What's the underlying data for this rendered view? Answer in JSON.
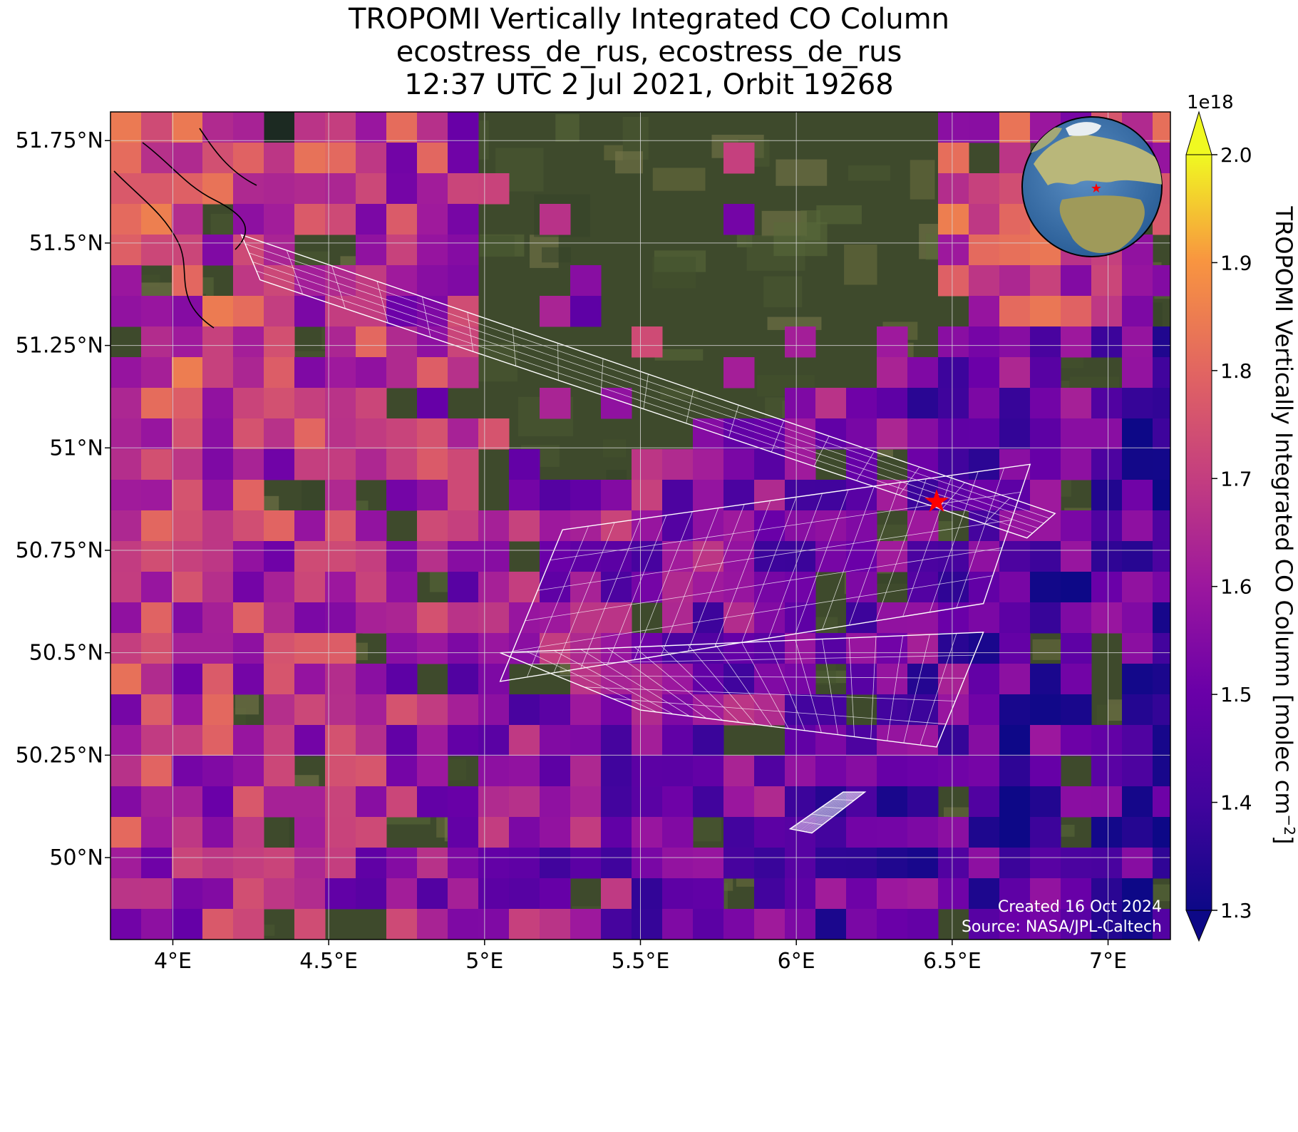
{
  "title": {
    "line1": "TROPOMI Vertically Integrated CO Column",
    "line2": "ecostress_de_rus, ecostress_de_rus",
    "line3": "12:37 UTC 2 Jul 2021, Orbit 19268"
  },
  "map": {
    "lon_range": [
      3.8,
      7.2
    ],
    "lat_range": [
      49.8,
      51.82
    ],
    "lon_ticks": [
      {
        "value": 4.0,
        "label": "4°E"
      },
      {
        "value": 4.5,
        "label": "4.5°E"
      },
      {
        "value": 5.0,
        "label": "5°E"
      },
      {
        "value": 5.5,
        "label": "5.5°E"
      },
      {
        "value": 6.0,
        "label": "6°E"
      },
      {
        "value": 6.5,
        "label": "6.5°E"
      },
      {
        "value": 7.0,
        "label": "7°E"
      }
    ],
    "lat_ticks": [
      {
        "value": 51.75,
        "label": "51.75°N"
      },
      {
        "value": 51.5,
        "label": "51.5°N"
      },
      {
        "value": 51.25,
        "label": "51.25°N"
      },
      {
        "value": 51.0,
        "label": "51°N"
      },
      {
        "value": 50.75,
        "label": "50.75°N"
      },
      {
        "value": 50.5,
        "label": "50.5°N"
      },
      {
        "value": 50.25,
        "label": "50.25°N"
      },
      {
        "value": 50.0,
        "label": "50°N"
      }
    ],
    "gridlines": true,
    "site_marker": {
      "lon": 6.45,
      "lat": 50.87,
      "color": "#ff0000"
    },
    "land_color": "#3e4a2c",
    "water_color": "#1c2a22",
    "footprint_color": "#ffffff"
  },
  "colorbar": {
    "label": "TROPOMI Vertically Integrated CO Column [molec cm",
    "label_sup": "−2",
    "label_end": "]",
    "exponent": "1e18",
    "min": 1.3,
    "max": 2.0,
    "extend": "both",
    "ticks": [
      {
        "value": 1.3,
        "label": "1.3"
      },
      {
        "value": 1.4,
        "label": "1.4"
      },
      {
        "value": 1.5,
        "label": "1.5"
      },
      {
        "value": 1.6,
        "label": "1.6"
      },
      {
        "value": 1.7,
        "label": "1.7"
      },
      {
        "value": 1.8,
        "label": "1.8"
      },
      {
        "value": 1.9,
        "label": "1.9"
      },
      {
        "value": 2.0,
        "label": "2.0"
      }
    ],
    "colormap": "plasma"
  },
  "inset": {
    "type": "globe",
    "marker_color": "#ff0000"
  },
  "credits": {
    "line1": "Created 16 Oct 2024",
    "line2": "Source: NASA/JPL-Caltech"
  }
}
